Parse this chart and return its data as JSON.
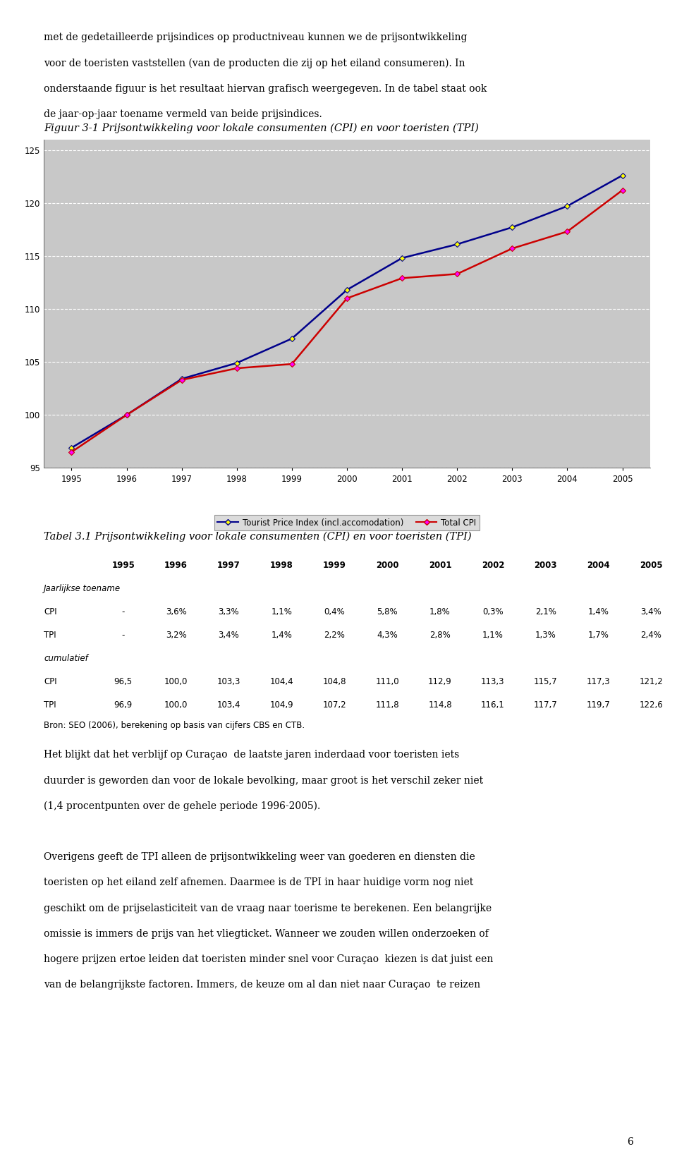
{
  "title": "Figuur 3-1 Prijsontwikkeling voor lokale consumenten (CPI) en voor toeristen (TPI)",
  "years": [
    1995,
    1996,
    1997,
    1998,
    1999,
    2000,
    2001,
    2002,
    2003,
    2004,
    2005
  ],
  "tpi_values": [
    96.9,
    100.0,
    103.4,
    104.9,
    107.2,
    111.8,
    114.8,
    116.1,
    117.7,
    119.7,
    122.6
  ],
  "cpi_values": [
    96.5,
    100.0,
    103.3,
    104.4,
    104.8,
    111.0,
    112.9,
    113.3,
    115.7,
    117.3,
    121.2
  ],
  "ylim": [
    95,
    126
  ],
  "yticks": [
    95,
    100,
    105,
    110,
    115,
    120,
    125
  ],
  "tpi_color": "#00008B",
  "cpi_color": "#CC0000",
  "tpi_marker_color": "#FFFF00",
  "cpi_marker_color": "#FF00FF",
  "legend_tpi": "Tourist Price Index (incl.accomodation)",
  "legend_cpi": "Total CPI",
  "plot_bg_color": "#C8C8C8",
  "fig_bg_color": "#FFFFFF",
  "grid_color": "#FFFFFF",
  "legend_bg": "#D3D3D3",
  "legend_border": "#808080",
  "para1": "met de gedetailleerde prijsindices op productniveau kunnen we de prijsontwikkeling\nvoor de toeristen vaststellen (van de producten die zij op het eiland consumeren). In\nonderstaande figuur is het resultaat hiervan grafisch weergegeven. In de tabel staat ook\nde jaar-op-jaar toename vermeld van beide prijsindices.",
  "table_title": "Tabel 3.1 Prijsontwikkeling voor lokale consumenten (CPI) en voor toeristen (TPI)",
  "table_headers": [
    "",
    "1995",
    "1996",
    "1997",
    "1998",
    "1999",
    "2000",
    "2001",
    "2002",
    "2003",
    "2004",
    "2005"
  ],
  "jaarlijkse_label": "Jaarlijkse toename",
  "cpi_jaarlijks": [
    "CPI",
    "-",
    "3,6%",
    "3,3%",
    "1,1%",
    "0,4%",
    "5,8%",
    "1,8%",
    "0,3%",
    "2,1%",
    "1,4%",
    "3,4%"
  ],
  "tpi_jaarlijks": [
    "TPI",
    "-",
    "3,2%",
    "3,4%",
    "1,4%",
    "2,2%",
    "4,3%",
    "2,8%",
    "1,1%",
    "1,3%",
    "1,7%",
    "2,4%"
  ],
  "cumulatief_label": "cumulatief",
  "cpi_cumulatief": [
    "CPI",
    "96,5",
    "100,0",
    "103,3",
    "104,4",
    "104,8",
    "111,0",
    "112,9",
    "113,3",
    "115,7",
    "117,3",
    "121,2"
  ],
  "tpi_cumulatief": [
    "TPI",
    "96,9",
    "100,0",
    "103,4",
    "104,9",
    "107,2",
    "111,8",
    "114,8",
    "116,1",
    "117,7",
    "119,7",
    "122,6"
  ],
  "bron": "Bron: SEO (2006), berekening op basis van cijfers CBS en CTB.",
  "para2": "Het blijkt dat het verblijf op Curaçao  de laatste jaren inderdaad voor toeristen iets\nduurder is geworden dan voor de lokale bevolking, maar groot is het verschil zeker niet\n(1,4 procentpunten over de gehele periode 1996-2005).",
  "para3": "Overigens geeft de TPI alleen de prijsontwikkeling weer van goederen en diensten die\ntoeristen op het eiland zelf afnemen. Daarmee is de TPI in haar huidige vorm nog niet\ngeschikt om de prijselasticiteit van de vraag naar toerisme te berekenen. Een belangrijke\nomissie is immers de prijs van het vliegticket. Wanneer we zouden willen onderzoeken of\nhogere prijzen ertoe leiden dat toeristen minder snel voor Curaçao  kiezen is dat juist een\nvan de belangrijkste factoren. Immers, de keuze om al dan niet naar Curaçao  te reizen",
  "page_number": "6"
}
